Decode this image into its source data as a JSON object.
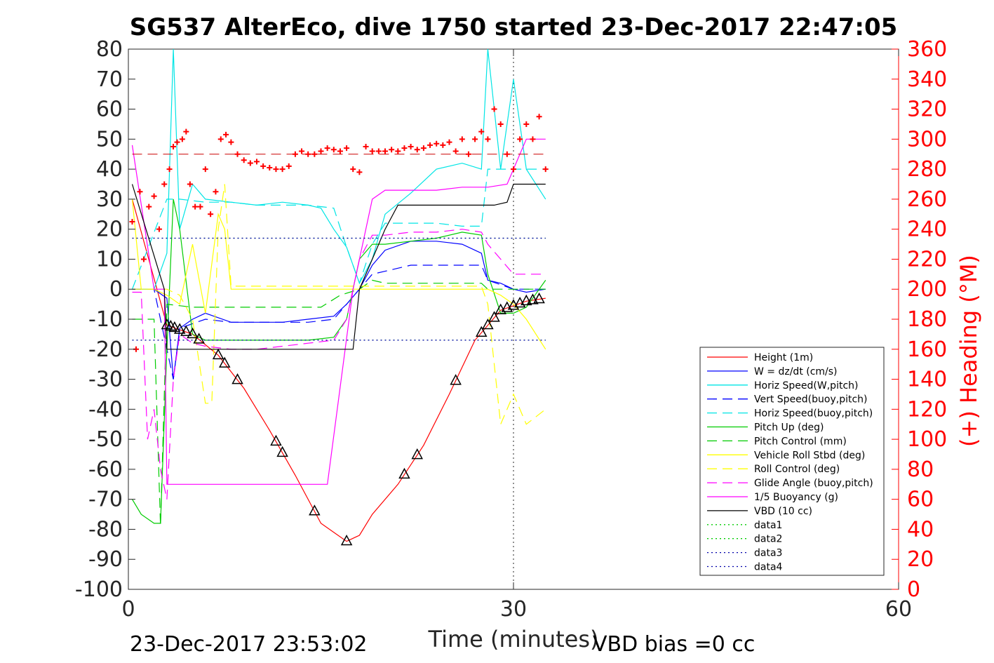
{
  "chart_data": {
    "type": "line",
    "title": "SG537 AlterEco, dive 1750 started 23-Dec-2017 22:47:05",
    "xlabel": "Time (minutes)",
    "ylabel_right": "(+) Heading (°M)",
    "xlim": [
      0,
      60
    ],
    "ylim": [
      -100,
      80
    ],
    "ylim_right": [
      0,
      360
    ],
    "x_ticks": [
      "0",
      "30",
      "60"
    ],
    "y_ticks": [
      "80",
      "70",
      "60",
      "50",
      "40",
      "30",
      "20",
      "10",
      "0",
      "-10",
      "-20",
      "-30",
      "-40",
      "-50",
      "-60",
      "-70",
      "-80",
      "-90",
      "-100"
    ],
    "y_right_ticks": [
      "360",
      "340",
      "320",
      "300",
      "280",
      "260",
      "240",
      "220",
      "200",
      "180",
      "160",
      "140",
      "120",
      "100",
      "80",
      "60",
      "40",
      "20",
      "0"
    ],
    "footer_left": "23-Dec-2017 23:53:02",
    "footer_right": "VBD bias =0 cc",
    "legend_position": "lower-right",
    "legend": [
      {
        "name": "Height (1m)",
        "color": "#ff0000",
        "style": "solid"
      },
      {
        "name": "W = dz/dt (cm/s)",
        "color": "#0000ff",
        "style": "solid"
      },
      {
        "name": "Horiz Speed(W,pitch)",
        "color": "#00e5e5",
        "style": "solid"
      },
      {
        "name": "Vert Speed(buoy,pitch)",
        "color": "#0000ff",
        "style": "dashed"
      },
      {
        "name": "Horiz Speed(buoy,pitch)",
        "color": "#00e5e5",
        "style": "dashed"
      },
      {
        "name": "Pitch Up (deg)",
        "color": "#00cc00",
        "style": "solid"
      },
      {
        "name": "Pitch Control (mm)",
        "color": "#00cc00",
        "style": "dashed"
      },
      {
        "name": "Vehicle Roll Stbd (deg)",
        "color": "#ffff00",
        "style": "solid"
      },
      {
        "name": "Roll Control (deg)",
        "color": "#ffff00",
        "style": "dashed"
      },
      {
        "name": "Glide Angle (buoy,pitch)",
        "color": "#ff00ff",
        "style": "dashed"
      },
      {
        "name": "1/5 Buoyancy (g)",
        "color": "#ff00ff",
        "style": "solid"
      },
      {
        "name": "VBD (10 cc)",
        "color": "#000000",
        "style": "solid"
      },
      {
        "name": "data1",
        "color": "#00cc00",
        "style": "dotted"
      },
      {
        "name": "data2",
        "color": "#00cc00",
        "style": "dotted"
      },
      {
        "name": "data3",
        "color": "#0000aa",
        "style": "dotted"
      },
      {
        "name": "data4",
        "color": "#0000aa",
        "style": "dotted"
      }
    ],
    "series": [
      {
        "name": "Height (1m)",
        "x": [
          0.3,
          3,
          5,
          7,
          9,
          11,
          13,
          15,
          17,
          18,
          19,
          21,
          23,
          25,
          27,
          29,
          31,
          32.5
        ],
        "y": [
          30,
          -12,
          -15,
          -22,
          -33,
          -47,
          -62,
          -78,
          -84,
          -82,
          -75,
          -65,
          -52,
          -35,
          -17,
          -7,
          -4,
          -3
        ]
      },
      {
        "name": "W = dz/dt (cm/s)",
        "x": [
          0.3,
          2,
          3,
          3.5,
          4,
          5,
          6,
          8,
          10,
          12,
          14,
          16,
          17,
          18,
          19,
          20,
          22,
          24,
          26,
          27.5,
          28,
          29,
          30,
          31,
          32.5
        ],
        "y": [
          0,
          0,
          -3,
          -30,
          -13,
          -10,
          -8,
          -11,
          -11,
          -11,
          -10,
          -9,
          -5,
          0,
          8,
          13,
          16,
          16,
          15,
          12,
          3,
          2,
          0,
          -1,
          0
        ]
      },
      {
        "name": "Horiz Speed(W,pitch)",
        "x": [
          0.3,
          2,
          3,
          3.5,
          4,
          5,
          6,
          8,
          10,
          12,
          14,
          15,
          16,
          17,
          18,
          19,
          20,
          22,
          24,
          26,
          27.5,
          28,
          29,
          30,
          31,
          32.5
        ],
        "y": [
          0,
          0,
          12,
          80,
          20,
          35,
          30,
          29,
          28,
          29,
          28,
          27,
          20,
          14,
          2,
          10,
          25,
          32,
          40,
          42,
          40,
          80,
          40,
          70,
          40,
          30
        ]
      },
      {
        "name": "Vert Speed(buoy,pitch)",
        "x": [
          0.3,
          2,
          3,
          3.5,
          4,
          6,
          8,
          10,
          12,
          14,
          16,
          17,
          18,
          19,
          20,
          22,
          24,
          26,
          27.5,
          28,
          30,
          32.5
        ],
        "y": [
          0,
          0,
          -20,
          -30,
          -13,
          -10,
          -11,
          -11,
          -11,
          -11,
          -10,
          -5,
          0,
          5,
          6,
          8,
          8,
          8,
          8,
          3,
          0,
          0
        ]
      },
      {
        "name": "Horiz Speed(buoy,pitch)",
        "x": [
          0.3,
          3,
          4,
          6,
          8,
          10,
          12,
          14,
          16,
          17,
          18,
          19,
          20,
          22,
          24,
          26,
          27.5,
          28,
          30,
          32.5
        ],
        "y": [
          0,
          30,
          30,
          29,
          29,
          28,
          28,
          28,
          27,
          14,
          2,
          15,
          22,
          22,
          22,
          21,
          21,
          40,
          40,
          40
        ]
      },
      {
        "name": "Pitch Up (deg)",
        "x": [
          0.3,
          1,
          2,
          2.5,
          3,
          3.5,
          4,
          5,
          6,
          8,
          10,
          12,
          14,
          16,
          17,
          18,
          19,
          20,
          22,
          24,
          26,
          27.5,
          28,
          29,
          30,
          31,
          32.5
        ],
        "y": [
          -70,
          -75,
          -78,
          -78,
          -20,
          30,
          20,
          -15,
          -17,
          -17,
          -17,
          -17,
          -17,
          -16,
          -10,
          10,
          15,
          15,
          16,
          17,
          19,
          18,
          5,
          -8,
          -8,
          -6,
          3
        ]
      },
      {
        "name": "Pitch Control (mm)",
        "x": [
          0.3,
          2,
          2.5,
          3,
          5,
          15,
          16.5,
          18,
          19,
          20,
          26,
          27.5,
          28,
          32.5
        ],
        "y": [
          -10,
          -10,
          -79,
          -5,
          -6,
          -6,
          -2,
          0,
          3,
          2,
          2,
          2,
          0,
          0
        ]
      },
      {
        "name": "Vehicle Roll Stbd (deg)",
        "x": [
          0.3,
          1,
          2,
          3,
          4,
          5,
          6,
          7,
          7.5,
          8,
          9,
          12,
          15,
          17,
          18,
          19,
          20,
          22,
          24,
          26,
          27.5,
          28,
          29,
          30,
          31,
          32.5
        ],
        "y": [
          30,
          0,
          0,
          -2,
          -5,
          15,
          -8,
          25,
          20,
          0,
          0,
          0,
          0,
          0,
          0,
          0,
          0,
          0,
          0,
          0,
          0,
          0,
          -2,
          -5,
          -10,
          -20
        ]
      },
      {
        "name": "Roll Control (deg)",
        "x": [
          0.3,
          3,
          4,
          5,
          6,
          6.5,
          7,
          7.5,
          8,
          15,
          17,
          18,
          20,
          27.5,
          28,
          29,
          30,
          31,
          32.5
        ],
        "y": [
          0,
          0,
          -2,
          -10,
          -38,
          -38,
          20,
          35,
          1,
          1,
          1,
          1,
          1,
          1,
          -5,
          -45,
          -35,
          -45,
          -40
        ]
      },
      {
        "name": "Glide Angle (buoy,pitch)",
        "x": [
          0.3,
          1,
          1.5,
          2,
          2.5,
          3,
          3.5,
          4,
          5,
          6,
          8,
          10,
          12,
          14,
          16,
          17,
          18,
          19,
          20,
          22,
          24,
          26,
          27.5,
          28,
          29,
          30,
          32.5
        ],
        "y": [
          -1,
          -1,
          -50,
          -40,
          -60,
          -70,
          -30,
          -15,
          -18,
          -19,
          -20,
          -20,
          -19,
          -18,
          -17,
          -10,
          10,
          18,
          18,
          19,
          19,
          20,
          19,
          15,
          10,
          5,
          5
        ]
      },
      {
        "name": "1/5 Buoyancy (g)",
        "x": [
          0.3,
          2,
          2.8,
          3,
          5,
          15.5,
          17.5,
          18,
          19,
          20,
          22,
          24,
          26,
          28,
          29.5,
          30,
          31,
          32.5
        ],
        "y": [
          48,
          0,
          0,
          -65,
          -65,
          -65,
          0,
          10,
          30,
          33,
          33,
          33,
          34,
          34,
          35,
          40,
          50,
          50
        ]
      },
      {
        "name": "VBD (10 cc)",
        "x": [
          0.3,
          2.8,
          3,
          6,
          10,
          15,
          17.5,
          18,
          20,
          21,
          24,
          27,
          28.5,
          29.5,
          30,
          32.5
        ],
        "y": [
          35,
          0,
          -20,
          -20,
          -20,
          -20,
          -20,
          0,
          20,
          28,
          28,
          28,
          28,
          29,
          35,
          35
        ]
      },
      {
        "name": "data1",
        "x": [
          0.3,
          32.5
        ],
        "y": [
          -17,
          -17
        ]
      },
      {
        "name": "data2",
        "x": [
          0.3,
          32.5
        ],
        "y": [
          17,
          17
        ]
      },
      {
        "name": "data3",
        "x": [
          0.3,
          32.5
        ],
        "y": [
          -17,
          -17
        ]
      },
      {
        "name": "data4",
        "x": [
          0.3,
          32.5
        ],
        "y": [
          17,
          17
        ]
      }
    ],
    "heading": {
      "mean": 290,
      "x": [
        0.3,
        0.6,
        0.9,
        1.2,
        1.6,
        2,
        2.4,
        2.8,
        3.2,
        3.5,
        3.8,
        4.2,
        4.5,
        4.8,
        5.2,
        5.6,
        6,
        6.4,
        6.8,
        7.2,
        7.6,
        8,
        8.5,
        9,
        9.5,
        10,
        10.5,
        11,
        11.5,
        12,
        12.5,
        13,
        13.5,
        14,
        14.5,
        15,
        15.5,
        16,
        16.5,
        17,
        17.5,
        18,
        18.5,
        19,
        19.5,
        20,
        20.5,
        21,
        21.5,
        22,
        22.5,
        23,
        23.5,
        24,
        24.5,
        25,
        25.5,
        26,
        26.5,
        27,
        27.5,
        28,
        28.5,
        29,
        29.5,
        30,
        30.5,
        31,
        31.5,
        32,
        32.5
      ],
      "y": [
        245,
        160,
        265,
        220,
        255,
        262,
        240,
        270,
        280,
        295,
        298,
        300,
        305,
        270,
        255,
        255,
        280,
        250,
        265,
        300,
        303,
        298,
        290,
        286,
        284,
        285,
        282,
        281,
        280,
        280,
        282,
        290,
        292,
        290,
        290,
        292,
        294,
        293,
        292,
        294,
        280,
        278,
        295,
        292,
        292,
        292,
        293,
        292,
        294,
        295,
        293,
        294,
        296,
        297,
        296,
        298,
        292,
        300,
        290,
        300,
        305,
        300,
        320,
        310,
        290,
        280,
        300,
        310,
        300,
        315,
        280
      ]
    }
  }
}
